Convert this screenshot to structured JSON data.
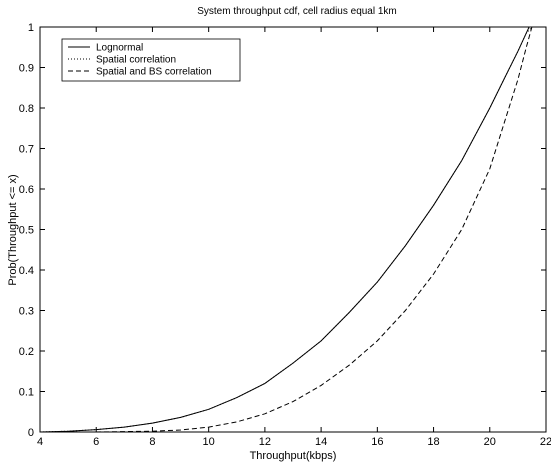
{
  "chart_data": {
    "type": "line",
    "title": "System throughput cdf, cell radius equal 1km",
    "xlabel": "Throughput(kbps)",
    "ylabel": "Prob(Throughput <= x)",
    "xlim": [
      4,
      22
    ],
    "ylim": [
      0,
      1
    ],
    "xticks": [
      "4",
      "6",
      "8",
      "10",
      "12",
      "14",
      "16",
      "18",
      "20",
      "22"
    ],
    "yticks": [
      "0",
      "0.1",
      "0.2",
      "0.3",
      "0.4",
      "0.5",
      "0.6",
      "0.7",
      "0.8",
      "0.9",
      "1"
    ],
    "grid": false,
    "legend_position": "top-left",
    "series": [
      {
        "name": "Lognormal",
        "style": "solid",
        "x": [
          4,
          5,
          6,
          7,
          8,
          9,
          10,
          11,
          12,
          13,
          14,
          15,
          16,
          17,
          18,
          19,
          20,
          20.5,
          21,
          21.3,
          21.4
        ],
        "y": [
          0,
          0.002,
          0.006,
          0.012,
          0.022,
          0.036,
          0.056,
          0.085,
          0.12,
          0.17,
          0.225,
          0.295,
          0.37,
          0.46,
          0.56,
          0.67,
          0.8,
          0.87,
          0.94,
          0.985,
          1.0
        ]
      },
      {
        "name": "Spatial correlation",
        "style": "dotted",
        "x": [
          4,
          5,
          6,
          7,
          8,
          9,
          10,
          11,
          12,
          13,
          14,
          15,
          16,
          17,
          18,
          19,
          20,
          20.5,
          21,
          21.3,
          21.5
        ],
        "y": [
          0,
          0.002,
          0.006,
          0.012,
          0.022,
          0.036,
          0.056,
          0.085,
          0.12,
          0.17,
          0.225,
          0.295,
          0.37,
          0.46,
          0.56,
          0.67,
          0.8,
          0.87,
          0.94,
          0.985,
          1.0
        ]
      },
      {
        "name": "Spatial and BS correlation",
        "style": "dashed",
        "x": [
          4,
          6,
          8,
          9,
          10,
          11,
          12,
          13,
          14,
          15,
          16,
          17,
          18,
          19,
          20,
          20.5,
          21,
          21.3,
          21.5
        ],
        "y": [
          0,
          0.0,
          0.002,
          0.005,
          0.012,
          0.025,
          0.045,
          0.075,
          0.115,
          0.165,
          0.225,
          0.3,
          0.39,
          0.5,
          0.65,
          0.76,
          0.87,
          0.95,
          1.0
        ]
      }
    ]
  }
}
